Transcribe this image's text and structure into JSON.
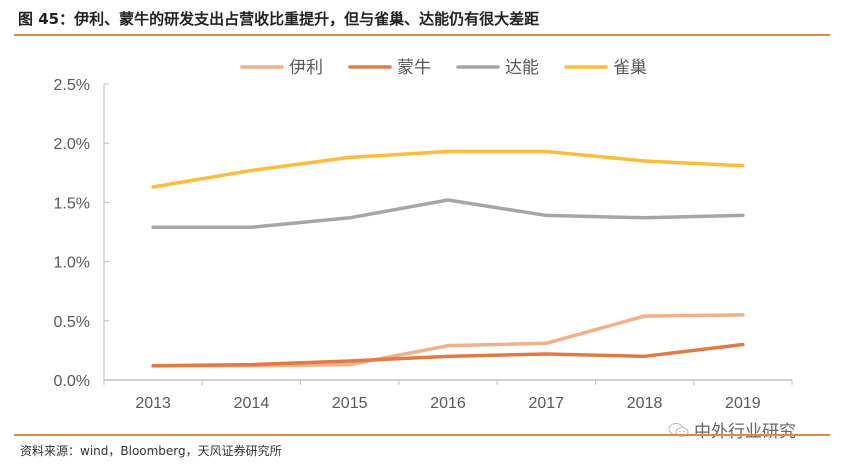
{
  "title": "图 45：伊利、蒙牛的研发支出占营收比重提升，但与雀巢、达能仍有很大差距",
  "source": "资料来源：wind，Bloomberg，天风证券研究所",
  "watermark": "中外行业研究",
  "chart_data": {
    "type": "line",
    "title": "伊利、蒙牛的研发支出占营收比重提升，但与雀巢、达能仍有很大差距",
    "xlabel": "",
    "ylabel": "",
    "categories": [
      "2013",
      "2014",
      "2015",
      "2016",
      "2017",
      "2018",
      "2019"
    ],
    "ylim": [
      0,
      2.5
    ],
    "yticks": [
      0,
      0.5,
      1.0,
      1.5,
      2.0,
      2.5
    ],
    "ytick_labels": [
      "0.0%",
      "0.5%",
      "1.0%",
      "1.5%",
      "2.0%",
      "2.5%"
    ],
    "grid": false,
    "legend_position": "top",
    "series": [
      {
        "name": "伊利",
        "color": "#f0b08a",
        "values": [
          0.12,
          0.12,
          0.13,
          0.29,
          0.31,
          0.54,
          0.55
        ]
      },
      {
        "name": "蒙牛",
        "color": "#e07b45",
        "values": [
          0.12,
          0.13,
          0.16,
          0.2,
          0.22,
          0.2,
          0.3
        ]
      },
      {
        "name": "达能",
        "color": "#a6a6a6",
        "values": [
          1.29,
          1.29,
          1.37,
          1.52,
          1.39,
          1.37,
          1.39
        ]
      },
      {
        "name": "雀巢",
        "color": "#fbbd3a",
        "values": [
          1.63,
          1.77,
          1.88,
          1.93,
          1.93,
          1.85,
          1.81
        ]
      }
    ]
  }
}
